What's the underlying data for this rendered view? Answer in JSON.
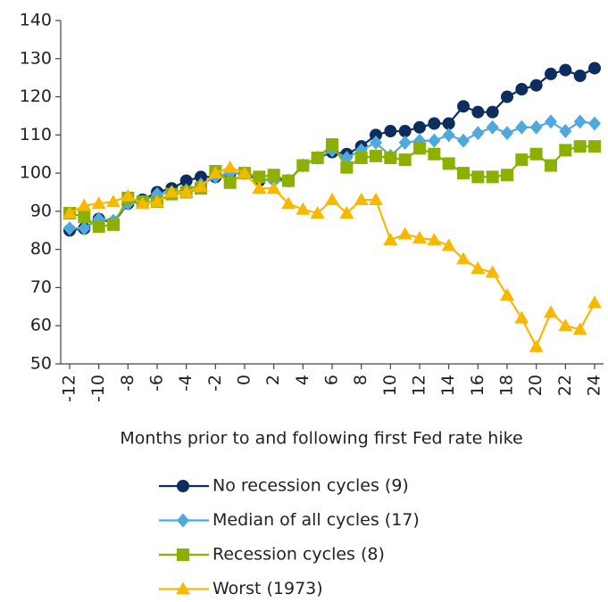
{
  "chart_data": {
    "type": "line",
    "x_label": "Months prior to and following first Fed rate hike",
    "x": [
      -12,
      -11,
      -10,
      -9,
      -8,
      -7,
      -6,
      -5,
      -4,
      -3,
      -2,
      -1,
      0,
      1,
      2,
      3,
      4,
      5,
      6,
      7,
      8,
      9,
      10,
      11,
      12,
      13,
      14,
      15,
      16,
      17,
      18,
      19,
      20,
      21,
      22,
      23,
      24
    ],
    "xlim": [
      -12,
      24
    ],
    "xticks": [
      -12,
      -10,
      -8,
      -6,
      -4,
      -2,
      0,
      2,
      4,
      6,
      8,
      10,
      12,
      14,
      16,
      18,
      20,
      22,
      24
    ],
    "ylim": [
      50,
      140
    ],
    "yticks": [
      50,
      60,
      70,
      80,
      90,
      100,
      110,
      120,
      130,
      140
    ],
    "grid": false,
    "legend": "bottom",
    "series": [
      {
        "name": "No recession cycles (9)",
        "color": "#0c2d5e",
        "marker": "circle",
        "values": [
          85,
          85.5,
          88,
          87,
          92,
          93,
          95,
          96,
          98,
          99,
          99,
          100,
          100,
          98,
          98.5,
          98,
          102,
          104,
          105.5,
          105,
          107,
          110,
          111,
          111,
          112,
          113,
          113,
          117.5,
          116,
          116,
          120,
          122,
          123,
          126,
          127,
          125.5,
          127.5
        ]
      },
      {
        "name": "Median of all cycles (17)",
        "color": "#4fa9dc",
        "marker": "diamond",
        "values": [
          85.5,
          85.5,
          88,
          87.5,
          92,
          92.5,
          94.5,
          95,
          95.5,
          97,
          99,
          100,
          100,
          98.5,
          98,
          98,
          102,
          104,
          106,
          104,
          106,
          108,
          104.5,
          108,
          108.5,
          108.5,
          110,
          108.5,
          110.5,
          112,
          110.5,
          112,
          112,
          113.5,
          111,
          113.5,
          113
        ]
      },
      {
        "name": "Recession cycles (8)",
        "color": "#8cb000",
        "marker": "square",
        "values": [
          89.5,
          88.5,
          86,
          86.5,
          93.5,
          92.5,
          92.5,
          94.5,
          95,
          96,
          100.5,
          97.5,
          100,
          99,
          99.5,
          98,
          102,
          104,
          107.5,
          101.5,
          104,
          104.5,
          104,
          103.5,
          106.5,
          105,
          102.5,
          100,
          99,
          99,
          99.5,
          103.5,
          105,
          102,
          106,
          107,
          107
        ]
      },
      {
        "name": "Worst (1973)",
        "color": "#f7b900",
        "marker": "triangle",
        "values": [
          89.5,
          91.5,
          92,
          92.5,
          94,
          92,
          92.5,
          95,
          95,
          96.5,
          100,
          101.5,
          100,
          96,
          96,
          92,
          90.5,
          89.5,
          93,
          89.5,
          93,
          93,
          82.5,
          84,
          83,
          82.5,
          81,
          77.5,
          75,
          74,
          68,
          62,
          54.5,
          63.5,
          60,
          59,
          66
        ]
      }
    ]
  }
}
